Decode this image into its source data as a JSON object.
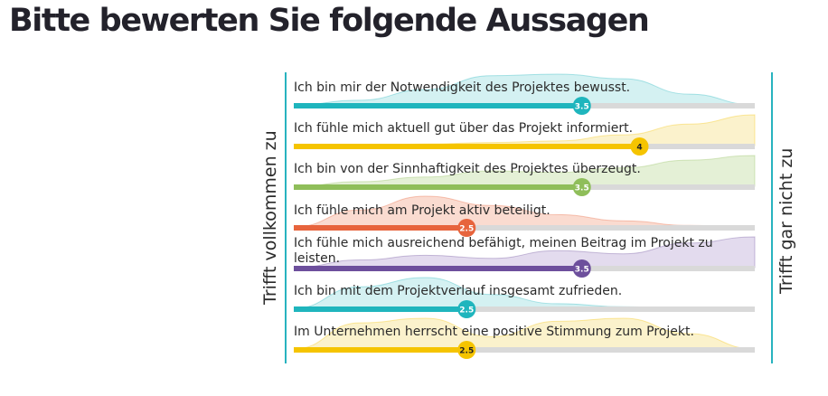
{
  "title": "Bitte bewerten Sie folgende Aussagen",
  "left_label": "Trifft vollkommen zu",
  "right_label": "Trifft gar nicht zu",
  "chart_data": {
    "type": "bar",
    "title": "Bitte bewerten Sie folgende Aussagen",
    "scale_min_label": "Trifft vollkommen zu",
    "scale_max_label": "Trifft gar nicht zu",
    "categories": [
      "Ich bin mir der Notwendigkeit des Projektes bewusst.",
      "Ich fühle mich aktuell gut über das Projekt informiert.",
      "Ich bin von der Sinnhaftigkeit des Projektes überzeugt.",
      "Ich fühle mich am Projekt aktiv beteiligt.",
      "Ich fühle mich ausreichend befähigt, meinen Beitrag im Projekt zu leisten.",
      "Ich bin mit dem Projektverlauf insgesamt zufrieden.",
      "Im Unternehmen herrscht eine positive Stimmung zum Projekt."
    ],
    "values": [
      3.5,
      4,
      3.5,
      2.5,
      3.5,
      2.5,
      2.5
    ],
    "value_labels": [
      "3.5",
      "4",
      "3.5",
      "2.5",
      "3.5",
      "2.5",
      "2.5"
    ],
    "colors": [
      "#1fb5bd",
      "#f5c400",
      "#8fbe5a",
      "#e7643d",
      "#6d4f9c",
      "#1fb5bd",
      "#f5c400"
    ],
    "distribution_colors": [
      "#d4f1f2",
      "#fbf2cc",
      "#e4f0d6",
      "#fadbd0",
      "#e3dbee",
      "#d4f1f2",
      "#fbf2cc"
    ]
  }
}
